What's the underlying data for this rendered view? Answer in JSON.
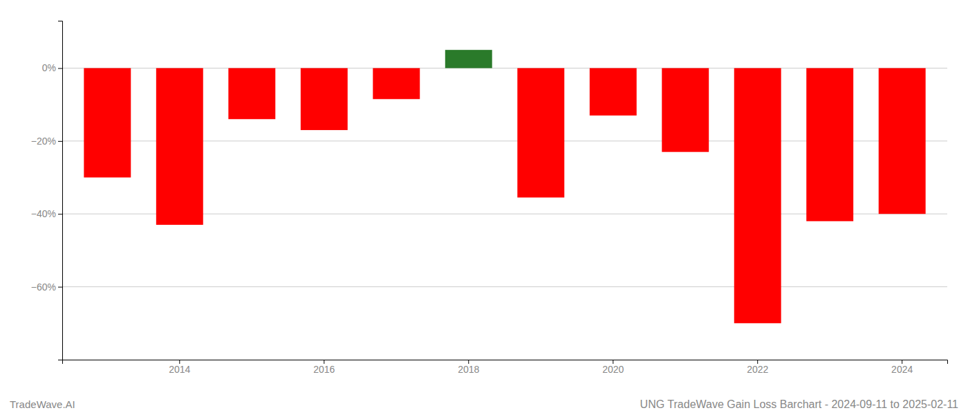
{
  "chart_data": {
    "type": "bar",
    "title": "UNG TradeWave Gain Loss Barchart - 2024-09-11 to 2025-02-11",
    "annotations": [
      "TradeWave.AI"
    ],
    "categories": [
      null,
      "2014",
      null,
      "2016",
      null,
      "2018",
      null,
      "2020",
      null,
      "2022",
      null,
      "2024"
    ],
    "values": [
      -0.3,
      -0.43,
      -0.14,
      -0.17,
      -0.085,
      0.05,
      -0.355,
      -0.13,
      -0.23,
      -0.7,
      -0.42,
      -0.4
    ],
    "colors": [
      "#ff0000",
      "#ff0000",
      "#ff0000",
      "#ff0000",
      "#ff0000",
      "#2a7a2a",
      "#ff0000",
      "#ff0000",
      "#ff0000",
      "#ff0000",
      "#ff0000",
      "#ff0000"
    ],
    "ylim": [
      -0.8,
      0.13
    ],
    "yticks": [
      {
        "value": 0.0,
        "label": "0%"
      },
      {
        "value": -0.2,
        "label": "−20%"
      },
      {
        "value": -0.4,
        "label": "−40%"
      },
      {
        "value": -0.6,
        "label": "−60%"
      }
    ],
    "grid": true
  }
}
